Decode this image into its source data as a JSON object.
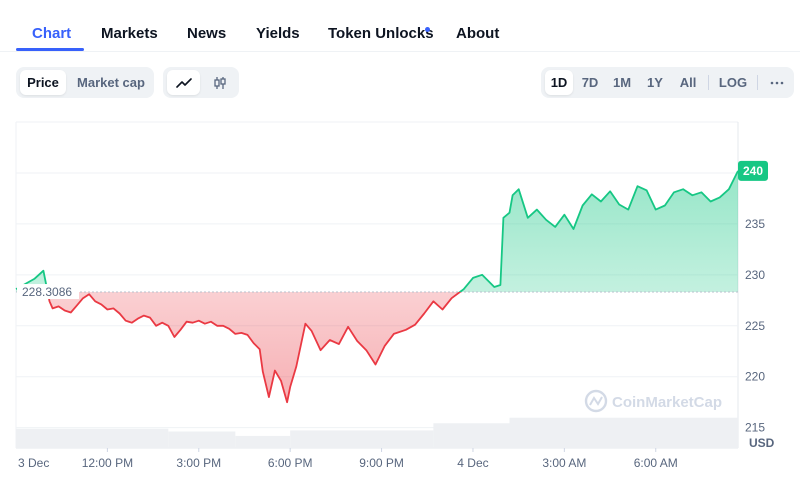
{
  "tabs": [
    {
      "label": "Chart",
      "active": true
    },
    {
      "label": "Markets"
    },
    {
      "label": "News"
    },
    {
      "label": "Yields"
    },
    {
      "label": "Token Unlocks",
      "badge": true
    },
    {
      "label": "About"
    }
  ],
  "toolbar": {
    "metric": [
      "Price",
      "Market cap"
    ],
    "chart_style": [
      "line-chart-icon",
      "candlestick-icon"
    ],
    "ranges": [
      "1D",
      "7D",
      "1M",
      "1Y",
      "All",
      "LOG"
    ],
    "more_icon": "ellipsis-icon"
  },
  "colors": {
    "accent": "#3861fb",
    "up": "#16c784",
    "down": "#ea3943",
    "text_secondary": "#58667e"
  },
  "chart_data": {
    "type": "line",
    "baseline": 228.3086,
    "baseline_label": "228.3086",
    "current_label": "240",
    "ylim": [
      213,
      245
    ],
    "yticks": [
      215,
      220,
      225,
      230,
      235,
      240
    ],
    "ytick_labels": [
      "215",
      "220",
      "225",
      "230",
      "235"
    ],
    "unit_label": "USD",
    "watermark": "CoinMarketCap",
    "xtick_labels": [
      "3 Dec",
      "12:00 PM",
      "3:00 PM",
      "6:00 PM",
      "9:00 PM",
      "4 Dec",
      "3:00 AM",
      "6:00 AM"
    ],
    "xtick_times": [
      0,
      3,
      6,
      9,
      12,
      15,
      18,
      21
    ],
    "xlim": [
      0,
      23.7
    ],
    "series": [
      {
        "x": [
          0,
          0.6,
          0.9,
          1.1,
          1.2,
          1.4,
          1.6,
          1.8,
          2.0,
          2.2,
          2.4,
          2.6,
          2.8,
          3.0,
          3.2,
          3.4,
          3.6,
          3.8,
          4.0,
          4.2,
          4.4,
          4.6,
          4.8,
          5.0,
          5.2,
          5.4,
          5.6,
          5.8,
          6.0,
          6.2,
          6.4,
          6.6,
          6.8,
          7.0,
          7.2,
          7.4,
          7.6,
          7.8,
          8.0,
          8.1,
          8.3,
          8.5,
          8.7,
          8.9,
          9.0,
          9.2,
          9.5,
          9.7,
          10.0,
          10.3,
          10.6,
          10.9,
          11.2,
          11.5,
          11.8,
          12.1,
          12.4,
          12.8,
          13.1,
          13.4,
          13.7,
          14.0,
          14.3,
          14.7,
          15.0,
          15.3,
          15.5,
          15.7,
          15.9,
          16.0,
          16.2,
          16.3,
          16.5,
          16.8,
          17.1,
          17.4,
          17.7,
          18.0,
          18.3,
          18.6,
          18.9,
          19.2,
          19.5,
          19.8,
          20.1,
          20.4,
          20.7,
          21.0,
          21.3,
          21.6,
          21.9,
          22.2,
          22.5,
          22.8,
          23.1,
          23.4,
          23.7
        ],
        "y": [
          228.6,
          229.6,
          230.4,
          227.4,
          226.7,
          226.9,
          226.5,
          226.3,
          227.0,
          227.7,
          228.1,
          227.4,
          227.1,
          226.6,
          226.7,
          226.2,
          225.5,
          225.3,
          225.7,
          226.0,
          225.8,
          225.0,
          225.3,
          225.0,
          223.9,
          224.6,
          225.4,
          225.3,
          225.5,
          225.2,
          225.4,
          225.0,
          225.0,
          224.7,
          224.2,
          224.3,
          224.1,
          223.3,
          222.7,
          220.5,
          218.0,
          220.6,
          219.6,
          217.5,
          219.0,
          221.0,
          225.2,
          224.5,
          222.6,
          223.6,
          223.2,
          224.9,
          223.5,
          222.6,
          221.2,
          223.0,
          224.2,
          224.6,
          225.1,
          226.2,
          227.4,
          226.6,
          227.7,
          228.6,
          229.7,
          230.0,
          229.4,
          228.8,
          229.0,
          235.6,
          236.1,
          237.8,
          238.4,
          235.6,
          236.4,
          235.4,
          234.7,
          235.9,
          234.5,
          236.8,
          237.9,
          237.2,
          238.2,
          236.9,
          236.4,
          238.7,
          238.3,
          236.4,
          236.8,
          238.1,
          238.4,
          237.8,
          238.1,
          237.2,
          237.6,
          238.4,
          240.2
        ]
      }
    ],
    "volume": [
      {
        "from": 0,
        "to": 5.0,
        "level": 0.35
      },
      {
        "from": 5.0,
        "to": 7.2,
        "level": 0.3
      },
      {
        "from": 7.2,
        "to": 9.0,
        "level": 0.22
      },
      {
        "from": 9.0,
        "to": 13.7,
        "level": 0.32
      },
      {
        "from": 13.7,
        "to": 16.2,
        "level": 0.45
      },
      {
        "from": 16.2,
        "to": 23.7,
        "level": 0.55
      }
    ]
  }
}
